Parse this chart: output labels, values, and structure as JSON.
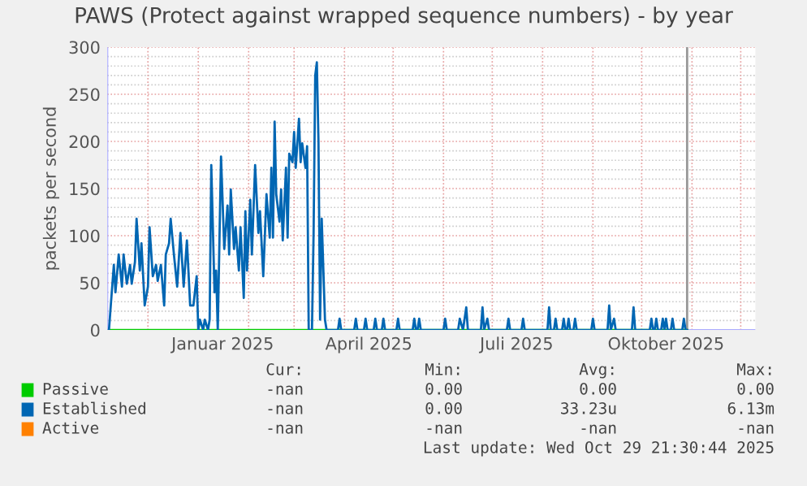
{
  "chart_data": {
    "type": "line",
    "title": "PAWS (Protect against wrapped sequence numbers) - by year",
    "ylabel": "packets per second",
    "xlim": [
      "2024-11-06",
      "2025-12-10"
    ],
    "xticks": [
      {
        "value": "2024-12-01",
        "label": null
      },
      {
        "value": "2025-01-01",
        "label": null
      },
      {
        "value": "2025-01-16",
        "label": "Januar 2025"
      },
      {
        "value": "2025-02-01",
        "label": null
      },
      {
        "value": "2025-03-01",
        "label": null
      },
      {
        "value": "2025-04-01",
        "label": null
      },
      {
        "value": "2025-04-16",
        "label": "April 2025"
      },
      {
        "value": "2025-05-01",
        "label": null
      },
      {
        "value": "2025-06-01",
        "label": null
      },
      {
        "value": "2025-07-01",
        "label": null
      },
      {
        "value": "2025-07-16",
        "label": "Juli 2025"
      },
      {
        "value": "2025-08-01",
        "label": null
      },
      {
        "value": "2025-09-01",
        "label": null
      },
      {
        "value": "2025-10-01",
        "label": null
      },
      {
        "value": "2025-10-16",
        "label": "Oktober 2025"
      },
      {
        "value": "2025-11-01",
        "label": null
      },
      {
        "value": "2025-12-01",
        "label": null
      }
    ],
    "ylim": [
      0,
      300
    ],
    "yticks": [
      0,
      {
        "value": 10,
        "label": null
      },
      {
        "value": 20,
        "label": null
      },
      {
        "value": 30,
        "label": null
      },
      {
        "value": 40,
        "label": null
      },
      50,
      {
        "value": 60,
        "label": null
      },
      {
        "value": 70,
        "label": null
      },
      {
        "value": 80,
        "label": null
      },
      {
        "value": 90,
        "label": null
      },
      100,
      {
        "value": 110,
        "label": null
      },
      {
        "value": 120,
        "label": null
      },
      {
        "value": 130,
        "label": null
      },
      {
        "value": 140,
        "label": null
      },
      150,
      {
        "value": 160,
        "label": null
      },
      {
        "value": 170,
        "label": null
      },
      {
        "value": 180,
        "label": null
      },
      {
        "value": 190,
        "label": null
      },
      200,
      {
        "value": 210,
        "label": null
      },
      {
        "value": 220,
        "label": null
      },
      {
        "value": 230,
        "label": null
      },
      {
        "value": 240,
        "label": null
      },
      250,
      {
        "value": 260,
        "label": null
      },
      {
        "value": 270,
        "label": null
      },
      {
        "value": 280,
        "label": null
      },
      {
        "value": 290,
        "label": null
      },
      300
    ],
    "grid": true,
    "legend": "bottom",
    "line_style": "solid",
    "marker": "none",
    "ref_lines": [
      {
        "axis": "x",
        "value": "2025-10-29",
        "color": "#999999"
      }
    ],
    "series": [
      {
        "name": "Passive",
        "color": "#00cc00",
        "x": [
          "2024-11-07",
          "2025-10-29"
        ],
        "values": [
          0,
          0
        ]
      },
      {
        "name": "Established",
        "color": "#0066b3",
        "x": [
          "2024-11-07",
          "2024-11-10",
          "2024-11-11",
          "2024-11-13",
          "2024-11-15",
          "2024-11-16",
          "2024-11-18",
          "2024-11-20",
          "2024-11-21",
          "2024-11-23",
          "2024-11-24",
          "2024-11-26",
          "2024-11-27",
          "2024-11-29",
          "2024-12-01",
          "2024-12-02",
          "2024-12-04",
          "2024-12-06",
          "2024-12-07",
          "2024-12-09",
          "2024-12-11",
          "2024-12-12",
          "2024-12-14",
          "2024-12-15",
          "2024-12-17",
          "2024-12-19",
          "2024-12-21",
          "2024-12-23",
          "2024-12-25",
          "2024-12-27",
          "2024-12-29",
          "2024-12-31",
          "2025-01-01",
          "2025-01-02",
          "2025-01-04",
          "2025-01-05",
          "2025-01-07",
          "2025-01-08",
          "2025-01-09",
          "2025-01-11",
          "2025-01-12",
          "2025-01-13",
          "2025-01-15",
          "2025-01-17",
          "2025-01-19",
          "2025-01-20",
          "2025-01-21",
          "2025-01-23",
          "2025-01-24",
          "2025-01-26",
          "2025-01-27",
          "2025-01-29",
          "2025-01-30",
          "2025-01-31",
          "2025-02-02",
          "2025-02-03",
          "2025-02-05",
          "2025-02-07",
          "2025-02-08",
          "2025-02-10",
          "2025-02-12",
          "2025-02-14",
          "2025-02-15",
          "2025-02-16",
          "2025-02-17",
          "2025-02-18",
          "2025-02-20",
          "2025-02-21",
          "2025-02-22",
          "2025-02-24",
          "2025-02-25",
          "2025-02-26",
          "2025-02-28",
          "2025-03-01",
          "2025-03-02",
          "2025-03-04",
          "2025-03-05",
          "2025-03-06",
          "2025-03-08",
          "2025-03-09",
          "2025-03-10",
          "2025-03-12",
          "2025-03-13",
          "2025-03-14",
          "2025-03-15",
          "2025-03-16",
          "2025-03-17",
          "2025-03-18",
          "2025-03-20",
          "2025-03-21",
          "2025-03-28",
          "2025-03-29",
          "2025-03-30",
          "2025-04-07",
          "2025-04-08",
          "2025-04-09",
          "2025-04-13",
          "2025-04-14",
          "2025-04-15",
          "2025-04-19",
          "2025-04-20",
          "2025-04-21",
          "2025-04-24",
          "2025-04-25",
          "2025-04-26",
          "2025-05-03",
          "2025-05-04",
          "2025-05-05",
          "2025-05-13",
          "2025-05-14",
          "2025-05-15",
          "2025-05-16",
          "2025-05-17",
          "2025-05-18",
          "2025-06-01",
          "2025-06-02",
          "2025-06-03",
          "2025-06-10",
          "2025-06-11",
          "2025-06-13",
          "2025-06-15",
          "2025-06-16",
          "2025-06-24",
          "2025-06-25",
          "2025-06-26",
          "2025-06-28",
          "2025-06-29",
          "2025-07-10",
          "2025-07-11",
          "2025-07-12",
          "2025-07-19",
          "2025-07-20",
          "2025-07-21",
          "2025-08-04",
          "2025-08-05",
          "2025-08-06",
          "2025-08-08",
          "2025-08-09",
          "2025-08-10",
          "2025-08-13",
          "2025-08-14",
          "2025-08-15",
          "2025-08-16",
          "2025-08-17",
          "2025-08-18",
          "2025-08-20",
          "2025-08-21",
          "2025-08-22",
          "2025-08-31",
          "2025-09-01",
          "2025-09-02",
          "2025-09-10",
          "2025-09-11",
          "2025-09-12",
          "2025-09-14",
          "2025-09-15",
          "2025-09-25",
          "2025-09-26",
          "2025-09-27",
          "2025-10-06",
          "2025-10-07",
          "2025-10-08",
          "2025-10-09",
          "2025-10-10",
          "2025-10-11",
          "2025-10-13",
          "2025-10-14",
          "2025-10-15",
          "2025-10-16",
          "2025-10-17",
          "2025-10-19",
          "2025-10-20",
          "2025-10-21",
          "2025-10-26",
          "2025-10-27",
          "2025-10-28",
          "2025-10-29"
        ],
        "values": [
          0,
          69,
          40,
          80,
          46,
          80,
          49,
          69,
          49,
          72,
          118,
          63,
          92,
          26,
          46,
          109,
          57,
          69,
          52,
          69,
          26,
          80,
          92,
          118,
          80,
          46,
          103,
          46,
          95,
          26,
          26,
          57,
          0,
          11,
          0,
          11,
          0,
          11,
          175,
          40,
          63,
          0,
          184,
          86,
          132,
          80,
          149,
          86,
          109,
          63,
          109,
          34,
          126,
          63,
          138,
          80,
          175,
          103,
          126,
          57,
          144,
          98,
          172,
          98,
          221,
          144,
          115,
          149,
          95,
          172,
          98,
          187,
          178,
          210,
          172,
          224,
          178,
          198,
          172,
          195,
          0,
          0,
          103,
          270,
          284,
          200,
          11,
          118,
          11,
          0,
          0,
          12,
          0,
          0,
          12,
          0,
          0,
          12,
          0,
          0,
          12,
          0,
          0,
          12,
          0,
          0,
          12,
          0,
          0,
          12,
          0,
          0,
          12,
          0,
          0,
          12,
          0,
          0,
          12,
          0,
          24,
          0,
          0,
          24,
          0,
          12,
          0,
          0,
          12,
          0,
          0,
          12,
          0,
          0,
          24,
          0,
          0,
          12,
          0,
          0,
          12,
          0,
          0,
          12,
          0,
          0,
          12,
          0,
          0,
          12,
          0,
          0,
          26,
          0,
          12,
          0,
          0,
          24,
          0,
          0,
          12,
          0,
          0,
          12,
          0,
          0,
          12,
          0,
          12,
          0,
          0,
          12,
          0,
          0,
          12,
          0,
          0
        ]
      },
      {
        "name": "Active",
        "color": "#ff8000"
      }
    ],
    "annotations": [
      "Cur:",
      "Min:",
      "Avg:",
      "Max:",
      "-nan",
      "0.00",
      "0.00",
      "0.00",
      "-nan",
      "0.00",
      "33.23u",
      "6.13m",
      "-nan",
      "-nan",
      "-nan",
      "-nan",
      "Last update: Wed Oct 29 21:30:44 2025"
    ]
  }
}
